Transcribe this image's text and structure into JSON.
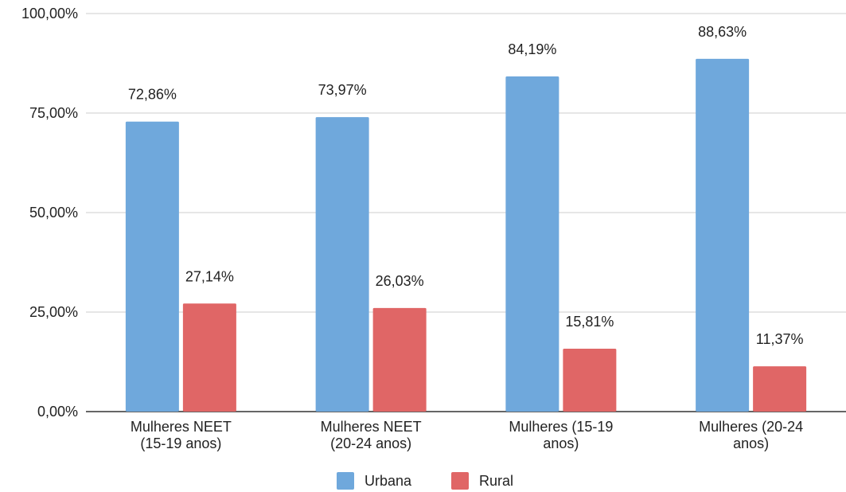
{
  "chart_data": {
    "type": "bar",
    "categories": [
      [
        "Mulheres NEET",
        "(15-19 anos)"
      ],
      [
        "Mulheres NEET",
        "(20-24 anos)"
      ],
      [
        "Mulheres (15-19",
        "anos)"
      ],
      [
        "Mulheres (20-24",
        "anos)"
      ]
    ],
    "series": [
      {
        "name": "Urbana",
        "color": "#6fa8dc",
        "values": [
          72.86,
          73.97,
          84.19,
          88.63
        ],
        "labels": [
          "72,86%",
          "73,97%",
          "84,19%",
          "88,63%"
        ]
      },
      {
        "name": "Rural",
        "color": "#e06666",
        "values": [
          27.14,
          26.03,
          15.81,
          11.37
        ],
        "labels": [
          "27,14%",
          "26,03%",
          "15,81%",
          "11,37%"
        ]
      }
    ],
    "ylim": [
      0,
      100
    ],
    "yticks": [
      0,
      25,
      50,
      75,
      100
    ],
    "ytick_labels": [
      "0,00%",
      "25,00%",
      "50,00%",
      "75,00%",
      "100,00%"
    ],
    "grid": true,
    "legend": "bottom"
  }
}
